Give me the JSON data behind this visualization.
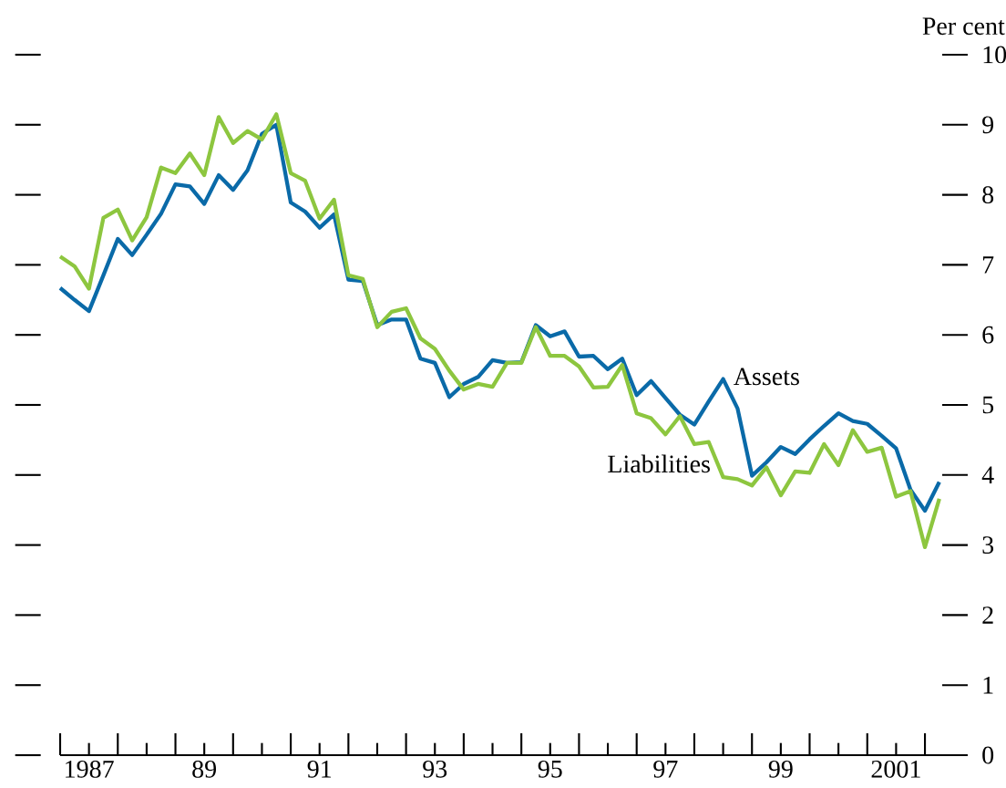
{
  "chart_data": {
    "type": "line",
    "ylabel": "Per cent",
    "x": [
      1986.5,
      1986.75,
      1987,
      1987.25,
      1987.5,
      1987.75,
      1988,
      1988.25,
      1988.5,
      1988.75,
      1989,
      1989.25,
      1989.5,
      1989.75,
      1990,
      1990.25,
      1990.5,
      1990.75,
      1991,
      1991.25,
      1991.5,
      1991.75,
      1992,
      1992.25,
      1992.5,
      1992.75,
      1993,
      1993.25,
      1993.5,
      1993.75,
      1994,
      1994.25,
      1994.5,
      1994.75,
      1995,
      1995.25,
      1995.5,
      1995.75,
      1996,
      1996.25,
      1996.5,
      1996.75,
      1997,
      1997.25,
      1997.5,
      1997.75,
      1998,
      1998.25,
      1998.5,
      1998.75,
      1999,
      1999.25,
      1999.5,
      1999.75,
      2000,
      2000.25,
      2000.5,
      2000.75,
      2001,
      2001.25,
      2001.5,
      2001.75
    ],
    "series": [
      {
        "name": "Assets",
        "color": "#0a6aa8",
        "values": [
          6.67,
          6.5,
          6.34,
          6.85,
          7.37,
          7.14,
          7.43,
          7.73,
          8.15,
          8.12,
          7.87,
          8.28,
          8.07,
          8.35,
          8.87,
          9.0,
          7.89,
          7.76,
          7.53,
          7.72,
          6.79,
          6.77,
          6.14,
          6.22,
          6.22,
          5.66,
          5.6,
          5.11,
          5.3,
          5.4,
          5.64,
          5.6,
          5.61,
          6.14,
          5.98,
          6.05,
          5.69,
          5.7,
          5.51,
          5.66,
          5.14,
          5.34,
          5.1,
          4.86,
          4.72,
          5.05,
          5.37,
          4.95,
          3.99,
          4.18,
          4.4,
          4.3,
          4.51,
          4.7,
          4.88,
          4.77,
          4.73,
          4.56,
          4.38,
          3.79,
          3.49,
          3.9
        ]
      },
      {
        "name": "Liabilities",
        "color": "#8dc63f",
        "values": [
          7.12,
          6.98,
          6.66,
          7.67,
          7.79,
          7.35,
          7.68,
          8.39,
          8.31,
          8.59,
          8.28,
          9.11,
          8.74,
          8.91,
          8.79,
          9.15,
          8.31,
          8.2,
          7.66,
          7.93,
          6.85,
          6.8,
          6.11,
          6.33,
          6.38,
          5.95,
          5.8,
          5.49,
          5.22,
          5.3,
          5.26,
          5.6,
          5.6,
          6.11,
          5.7,
          5.7,
          5.55,
          5.25,
          5.26,
          5.57,
          4.88,
          4.81,
          4.58,
          4.84,
          4.44,
          4.47,
          3.97,
          3.94,
          3.85,
          4.11,
          3.71,
          4.05,
          4.03,
          4.44,
          4.14,
          4.64,
          4.33,
          4.39,
          3.69,
          3.77,
          2.97,
          3.66
        ]
      }
    ],
    "xlim": [
      1986.5,
      2001.8
    ],
    "ylim": [
      0,
      10
    ],
    "xticks": [
      {
        "value": 1986.5,
        "label": null
      },
      1987,
      {
        "value": 1987.5,
        "label": null
      },
      {
        "value": 1988,
        "label": null
      },
      {
        "value": 1988.5,
        "label": null
      },
      {
        "value": 1989,
        "label": "89"
      },
      {
        "value": 1989.5,
        "label": null
      },
      {
        "value": 1990,
        "label": null
      },
      {
        "value": 1990.5,
        "label": null
      },
      {
        "value": 1991,
        "label": "91"
      },
      {
        "value": 1991.5,
        "label": null
      },
      {
        "value": 1992,
        "label": null
      },
      {
        "value": 1992.5,
        "label": null
      },
      {
        "value": 1993,
        "label": "93"
      },
      {
        "value": 1993.5,
        "label": null
      },
      {
        "value": 1994,
        "label": null
      },
      {
        "value": 1994.5,
        "label": null
      },
      {
        "value": 1995,
        "label": "95"
      },
      {
        "value": 1995.5,
        "label": null
      },
      {
        "value": 1996,
        "label": null
      },
      {
        "value": 1996.5,
        "label": null
      },
      {
        "value": 1997,
        "label": "97"
      },
      {
        "value": 1997.5,
        "label": null
      },
      {
        "value": 1998,
        "label": null
      },
      {
        "value": 1998.5,
        "label": null
      },
      {
        "value": 1999,
        "label": "99"
      },
      {
        "value": 1999.5,
        "label": null
      },
      {
        "value": 2000,
        "label": null
      },
      {
        "value": 2000.5,
        "label": null
      },
      2001,
      {
        "value": 2001.5,
        "label": null
      }
    ],
    "yticks": [
      0,
      1,
      2,
      3,
      4,
      5,
      6,
      7,
      8,
      9,
      10
    ],
    "legend": false,
    "marker": "none",
    "line_style": "solid"
  }
}
